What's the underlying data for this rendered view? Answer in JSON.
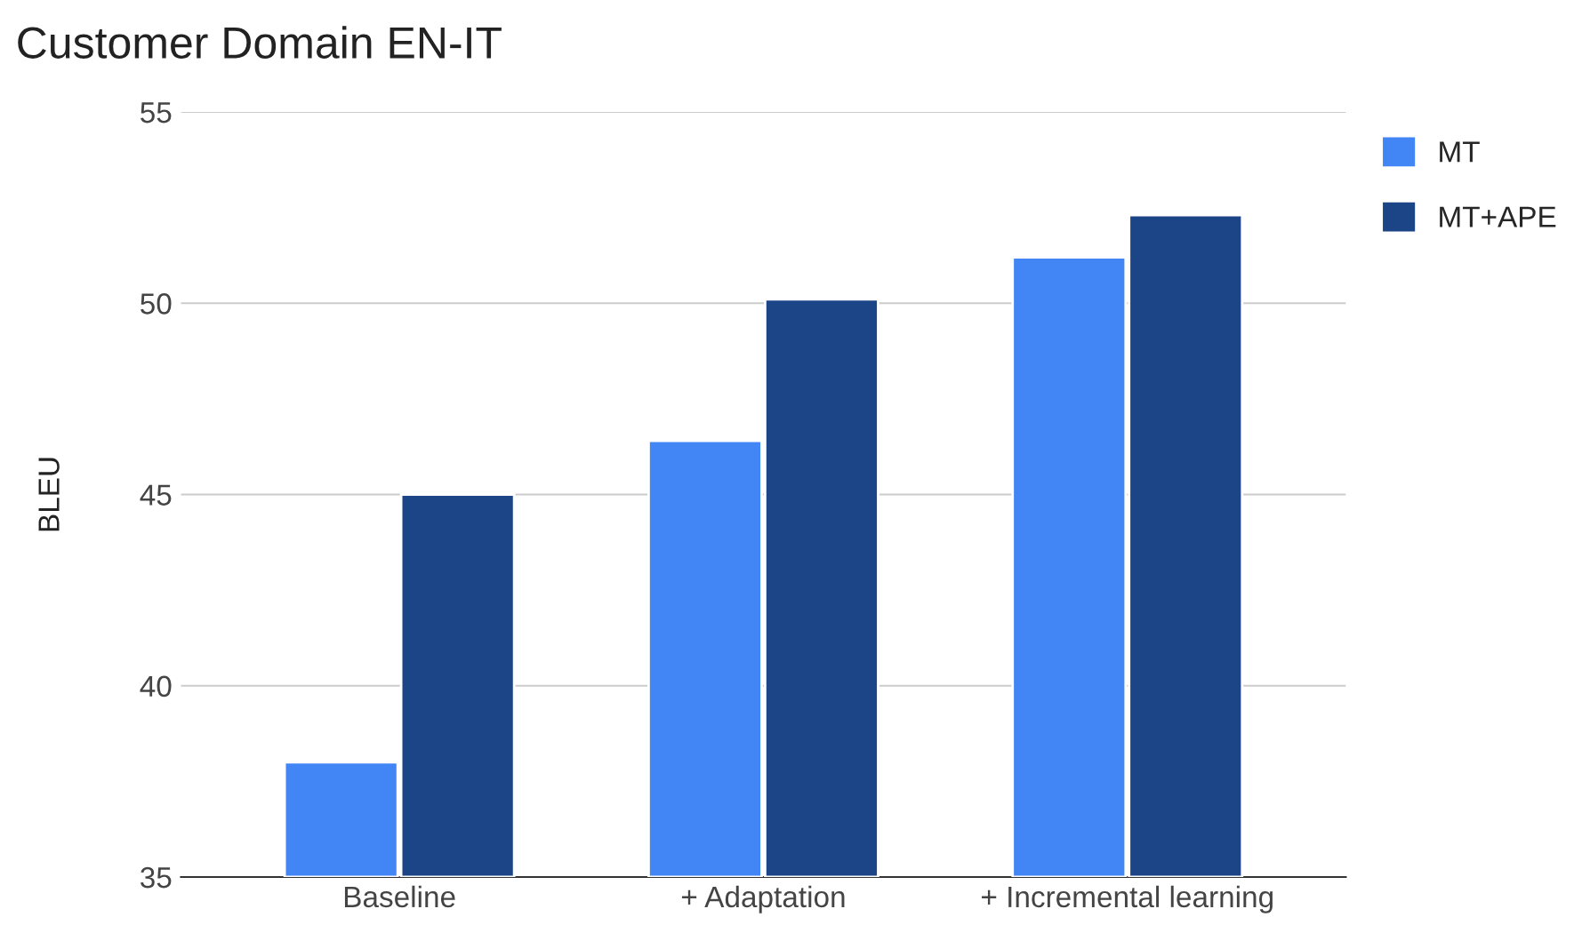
{
  "chart_data": {
    "type": "bar",
    "title": "Customer Domain EN-IT",
    "ylabel": "BLEU",
    "categories": [
      "Baseline",
      "+ Adaptation",
      "+ Incremental learning"
    ],
    "series": [
      {
        "name": "MT",
        "color": "#4285f4",
        "values": [
          38.0,
          46.4,
          51.2
        ]
      },
      {
        "name": "MT+APE",
        "color": "#1c4587",
        "values": [
          45.0,
          50.1,
          52.3
        ]
      }
    ],
    "ylim": [
      35,
      55
    ],
    "yticks": [
      35,
      40,
      45,
      50,
      55
    ],
    "grid": "y",
    "legend": "top right"
  }
}
